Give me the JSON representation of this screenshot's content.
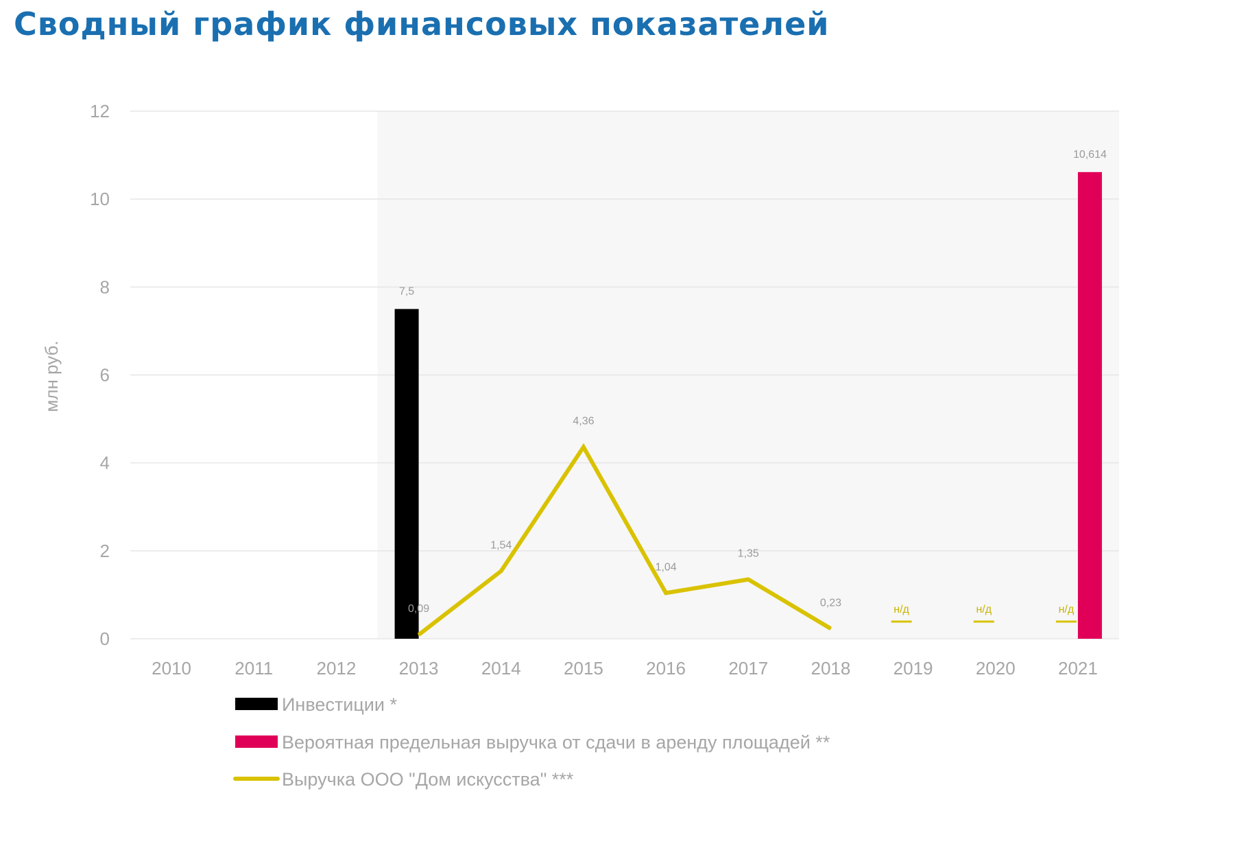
{
  "title": "Сводный график финансовых показателей",
  "colors": {
    "title": "#1a6fb0",
    "investments": "#000000",
    "rent": "#e00057",
    "revenue": "#d9c200",
    "grid": "#e6e6e6",
    "shade": "#f7f7f7",
    "text": "#a6a6a6"
  },
  "chart_data": {
    "type": "bar",
    "categories": [
      "2010",
      "2011",
      "2012",
      "2013",
      "2014",
      "2015",
      "2016",
      "2017",
      "2018",
      "2019",
      "2020",
      "2021"
    ],
    "ylabel": "млн руб.",
    "ylim": [
      0,
      12
    ],
    "yticks": [
      0,
      2,
      4,
      6,
      8,
      10,
      12
    ],
    "grid": true,
    "shaded_from": "2013",
    "legend_position": "bottom",
    "series": [
      {
        "name": "Инвестиции *",
        "type": "bar",
        "color": "#000000",
        "values": [
          null,
          null,
          null,
          7.5,
          null,
          null,
          null,
          null,
          null,
          null,
          null,
          null
        ],
        "labels": [
          null,
          null,
          null,
          "7,5",
          null,
          null,
          null,
          null,
          null,
          null,
          null,
          null
        ]
      },
      {
        "name": "Вероятная предельная выручка от сдачи в аренду площадей **",
        "type": "bar",
        "color": "#e00057",
        "values": [
          null,
          null,
          null,
          null,
          null,
          null,
          null,
          null,
          null,
          null,
          null,
          10.614
        ],
        "labels": [
          null,
          null,
          null,
          null,
          null,
          null,
          null,
          null,
          null,
          null,
          null,
          "10,614"
        ]
      },
      {
        "name": "Выручка ООО \"Дом искусства\" ***",
        "type": "line",
        "color": "#d9c200",
        "values": [
          null,
          null,
          null,
          0.09,
          1.54,
          4.36,
          1.04,
          1.35,
          0.23,
          null,
          null,
          null
        ],
        "labels": [
          null,
          null,
          null,
          "0,09",
          "1,54",
          "4,36",
          "1,04",
          "1,35",
          "0,23",
          "н/д",
          "н/д",
          "н/д"
        ]
      }
    ]
  }
}
